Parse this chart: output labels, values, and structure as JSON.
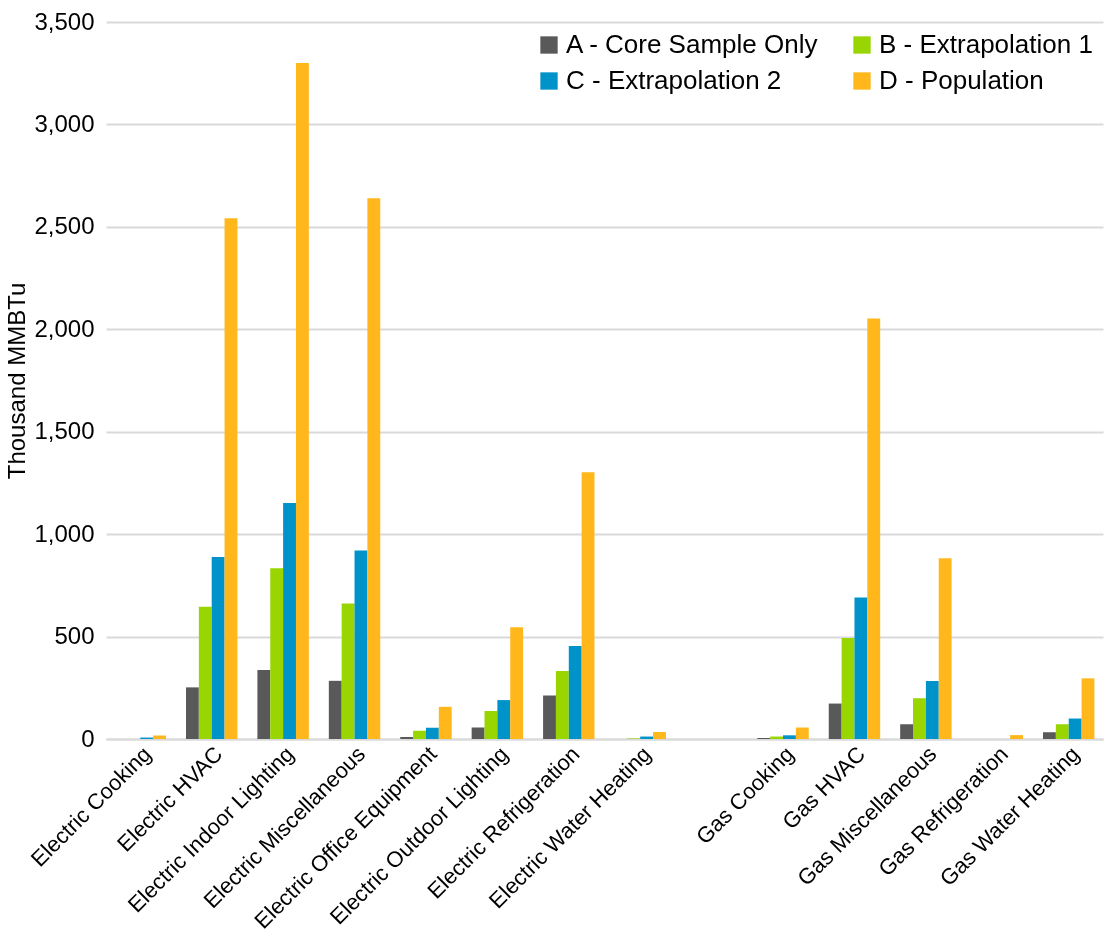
{
  "chart_data": {
    "type": "bar",
    "ylabel": "Thousand MMBTu",
    "categories": [
      "Electric Cooking",
      "Electric HVAC",
      "Electric Indoor Lighting",
      "Electric Miscellaneous",
      "Electric Office Equipment",
      "Electric Outdoor Lighting",
      "Electric Refrigeration",
      "Electric Water Heating",
      null,
      "Gas Cooking",
      "Gas HVAC",
      "Gas Miscellaneous",
      "Gas Refrigeration",
      "Gas Water Heating"
    ],
    "series": [
      {
        "name": "A - Core Sample Only",
        "color": "#595959",
        "values": [
          null,
          252,
          337,
          284,
          10,
          56,
          212,
          null,
          null,
          5,
          173,
          72,
          0,
          33
        ]
      },
      {
        "name": "B - Extrapolation 1",
        "color": "#99d500",
        "values": [
          null,
          645,
          834,
          661,
          40,
          137,
          332,
          3,
          null,
          12,
          493,
          199,
          0,
          72
        ]
      },
      {
        "name": "C - Extrapolation 2",
        "color": "#0093c9",
        "values": [
          7,
          888,
          1152,
          920,
          55,
          190,
          454,
          12,
          null,
          18,
          691,
          283,
          null,
          100
        ]
      },
      {
        "name": "D - Population",
        "color": "#ffb71b",
        "values": [
          17,
          2542,
          3300,
          2640,
          157,
          546,
          1302,
          34,
          null,
          56,
          2053,
          882,
          19,
          296
        ]
      }
    ],
    "ylim": [
      0,
      3500
    ],
    "yticks": [
      0,
      {
        "value": 500,
        "label": "500"
      },
      {
        "value": 1000,
        "label": "1,000"
      },
      {
        "value": 1500,
        "label": "1,500"
      },
      {
        "value": 2000,
        "label": "2,000"
      },
      {
        "value": 2500,
        "label": "2,500"
      },
      {
        "value": 3000,
        "label": "3,000"
      },
      {
        "value": 3500,
        "label": "3,500"
      }
    ],
    "grid": "y",
    "legend": "top right"
  }
}
